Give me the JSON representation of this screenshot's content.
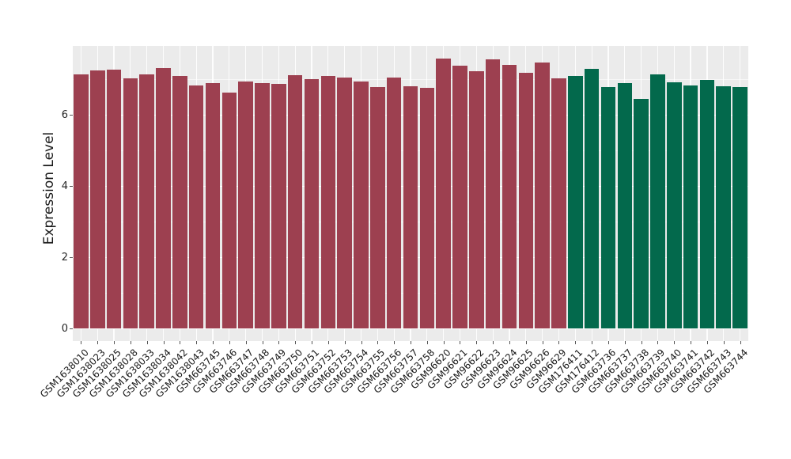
{
  "figure": {
    "background": "#ffffff",
    "panel_background": "#ebebeb",
    "gridline_color": "#ffffff",
    "tick_color": "#555555",
    "text_color": "#1a1a1a"
  },
  "chart_data": {
    "type": "bar",
    "title": "",
    "xlabel": "",
    "ylabel": "Expression Level",
    "ylim": [
      0,
      7.93
    ],
    "y_major_ticks": [
      0,
      2,
      4,
      6
    ],
    "y_minor_gridlines": [
      1,
      3,
      5,
      7
    ],
    "grid": true,
    "legend_position": "none",
    "x_label_rotation_deg": 45,
    "categories": [
      "GSM1638010",
      "GSM1638023",
      "GSM1638025",
      "GSM1638028",
      "GSM1638033",
      "GSM1638034",
      "GSM1638042",
      "GSM1638043",
      "GSM663745",
      "GSM663746",
      "GSM663747",
      "GSM663748",
      "GSM663749",
      "GSM663750",
      "GSM663751",
      "GSM663752",
      "GSM663753",
      "GSM663754",
      "GSM663755",
      "GSM663756",
      "GSM663757",
      "GSM663758",
      "GSM96620",
      "GSM96621",
      "GSM96622",
      "GSM96623",
      "GSM96624",
      "GSM96625",
      "GSM96626",
      "GSM96629",
      "GSM176411",
      "GSM176412",
      "GSM663736",
      "GSM663737",
      "GSM663738",
      "GSM663739",
      "GSM663740",
      "GSM663741",
      "GSM663742",
      "GSM663743",
      "GSM663744"
    ],
    "values": [
      7.13,
      7.24,
      7.27,
      7.02,
      7.14,
      7.32,
      7.1,
      6.83,
      6.9,
      6.63,
      6.94,
      6.89,
      6.87,
      7.11,
      7.0,
      7.08,
      7.05,
      6.93,
      6.78,
      7.04,
      6.81,
      6.76,
      7.58,
      7.38,
      7.23,
      7.55,
      7.4,
      7.17,
      7.46,
      7.03,
      7.1,
      7.28,
      6.78,
      6.9,
      6.44,
      7.13,
      6.91,
      6.83,
      6.97,
      6.79,
      6.78
    ],
    "bar_color_groups": [
      "red",
      "red",
      "red",
      "red",
      "red",
      "red",
      "red",
      "red",
      "red",
      "red",
      "red",
      "red",
      "red",
      "red",
      "red",
      "red",
      "red",
      "red",
      "red",
      "red",
      "red",
      "red",
      "red",
      "red",
      "red",
      "red",
      "red",
      "red",
      "red",
      "red",
      "green",
      "green",
      "green",
      "green",
      "green",
      "green",
      "green",
      "green",
      "green",
      "green",
      "green"
    ],
    "group_colors": {
      "red": "#9D4050",
      "green": "#03694C"
    }
  }
}
